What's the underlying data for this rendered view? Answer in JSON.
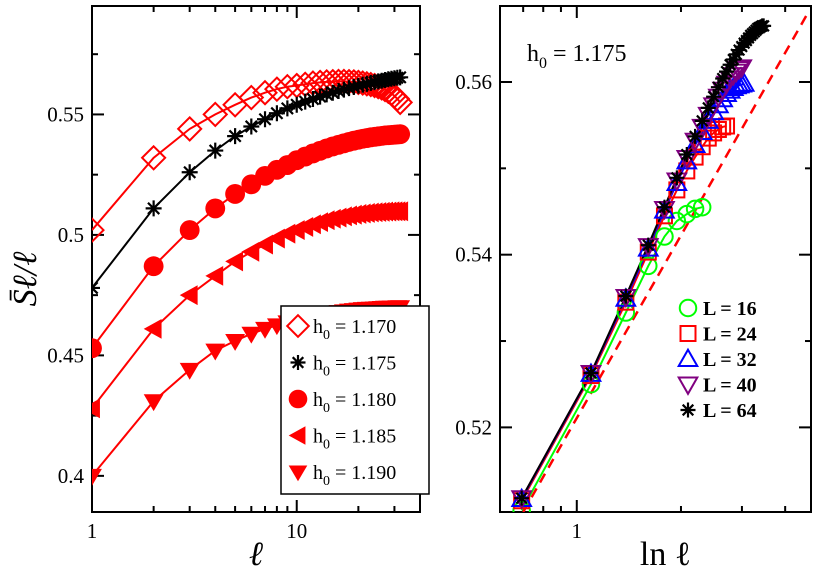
{
  "chart_data": [
    {
      "type": "line",
      "panel": "left",
      "xscale": "log",
      "xlim": [
        1,
        40
      ],
      "ylim": [
        0.385,
        0.595
      ],
      "xticks": [
        1,
        10
      ],
      "xtick_labels": [
        "1",
        "10"
      ],
      "yticks": [
        0.4,
        0.45,
        0.5,
        0.55
      ],
      "ytick_labels": [
        "0.4",
        "0.45",
        "0.5",
        "0.55"
      ],
      "xlabel": "ℓ",
      "ylabel": "S̄ℓ/ℓ",
      "legend_placement": "bottom-right",
      "series": [
        {
          "name": "h₀ = 1.170",
          "label_prefix": "h",
          "label_sub": "0",
          "label_value": " = 1.170",
          "color": "#ff0000",
          "marker": "diamond-open",
          "x": [
            1,
            2,
            3,
            4,
            5,
            6,
            7,
            8,
            9,
            10,
            11,
            12,
            13,
            14,
            15,
            16,
            17,
            18,
            19,
            20,
            21,
            22,
            23,
            24,
            25,
            26,
            27,
            28,
            29,
            30,
            31,
            32
          ],
          "y": [
            0.502,
            0.532,
            0.544,
            0.55,
            0.554,
            0.557,
            0.559,
            0.5605,
            0.5615,
            0.562,
            0.5625,
            0.563,
            0.5633,
            0.5635,
            0.5636,
            0.5637,
            0.5637,
            0.5636,
            0.5635,
            0.5633,
            0.563,
            0.5627,
            0.5624,
            0.562,
            0.5615,
            0.561,
            0.5603,
            0.5596,
            0.5587,
            0.5577,
            0.5565,
            0.555
          ]
        },
        {
          "name": "h₀ = 1.175",
          "label_prefix": "h",
          "label_sub": "0",
          "label_value": " = 1.175",
          "color": "#000000",
          "marker": "asterisk",
          "x": [
            1,
            2,
            3,
            4,
            5,
            6,
            7,
            8,
            9,
            10,
            11,
            12,
            13,
            14,
            15,
            16,
            17,
            18,
            19,
            20,
            21,
            22,
            23,
            24,
            25,
            26,
            27,
            28,
            29,
            30,
            31,
            32
          ],
          "y": [
            0.478,
            0.511,
            0.526,
            0.535,
            0.541,
            0.545,
            0.548,
            0.5505,
            0.5525,
            0.554,
            0.5553,
            0.5564,
            0.5574,
            0.5583,
            0.559,
            0.5597,
            0.5603,
            0.5609,
            0.5614,
            0.5619,
            0.5623,
            0.5627,
            0.5631,
            0.5634,
            0.5637,
            0.564,
            0.5643,
            0.5646,
            0.5648,
            0.565,
            0.5652,
            0.5654
          ]
        },
        {
          "name": "h₀ = 1.180",
          "label_prefix": "h",
          "label_sub": "0",
          "label_value": " = 1.180",
          "color": "#ff0000",
          "marker": "circle",
          "x": [
            1,
            2,
            3,
            4,
            5,
            6,
            7,
            8,
            9,
            10,
            11,
            12,
            13,
            14,
            15,
            16,
            17,
            18,
            19,
            20,
            21,
            22,
            23,
            24,
            25,
            26,
            27,
            28,
            29,
            30,
            31,
            32
          ],
          "y": [
            0.453,
            0.487,
            0.502,
            0.511,
            0.517,
            0.521,
            0.5245,
            0.527,
            0.529,
            0.531,
            0.5325,
            0.5338,
            0.5349,
            0.5359,
            0.5367,
            0.5374,
            0.538,
            0.5386,
            0.5391,
            0.5395,
            0.5399,
            0.5402,
            0.5405,
            0.5407,
            0.5409,
            0.5411,
            0.5413,
            0.5414,
            0.5415,
            0.5416,
            0.5417,
            0.5418
          ]
        },
        {
          "name": "h₀ = 1.185",
          "label_prefix": "h",
          "label_sub": "0",
          "label_value": " = 1.185",
          "color": "#ff0000",
          "marker": "triangle-left",
          "x": [
            1,
            2,
            3,
            4,
            5,
            6,
            7,
            8,
            9,
            10,
            11,
            12,
            13,
            14,
            15,
            16,
            17,
            18,
            19,
            20,
            21,
            22,
            23,
            24,
            25,
            26,
            27,
            28,
            29,
            30,
            31,
            32
          ],
          "y": [
            0.428,
            0.461,
            0.475,
            0.483,
            0.489,
            0.493,
            0.496,
            0.4985,
            0.5005,
            0.502,
            0.5033,
            0.5044,
            0.5053,
            0.5061,
            0.5067,
            0.5072,
            0.5077,
            0.5081,
            0.5084,
            0.5087,
            0.5089,
            0.5091,
            0.5093,
            0.5094,
            0.5095,
            0.5096,
            0.5097,
            0.5097,
            0.5098,
            0.5098,
            0.5098,
            0.5098
          ]
        },
        {
          "name": "h₀ = 1.190",
          "label_prefix": "h",
          "label_sub": "0",
          "label_value": " = 1.190",
          "color": "#ff0000",
          "marker": "triangle-down",
          "x": [
            1,
            2,
            3,
            4,
            5,
            6,
            7,
            8,
            9,
            10,
            11,
            12,
            13,
            14,
            15,
            16,
            17,
            18,
            19,
            20,
            21,
            22,
            23,
            24,
            25,
            26,
            27,
            28,
            29,
            30,
            31,
            32
          ],
          "y": [
            0.4,
            0.431,
            0.444,
            0.452,
            0.456,
            0.459,
            0.461,
            0.4625,
            0.4637,
            0.4647,
            0.4655,
            0.4662,
            0.4668,
            0.4673,
            0.4677,
            0.468,
            0.4683,
            0.4686,
            0.4688,
            0.469,
            0.4692,
            0.4693,
            0.4694,
            0.4695,
            0.4696,
            0.4697,
            0.4698,
            0.4698,
            0.4699,
            0.4699,
            0.47,
            0.47
          ]
        }
      ]
    },
    {
      "type": "line",
      "panel": "right",
      "xscale": "log",
      "xlim": [
        0.6,
        4.75
      ],
      "ylim": [
        0.5102,
        0.5688
      ],
      "xticks": [
        1
      ],
      "xtick_labels": [
        "1"
      ],
      "yticks": [
        0.52,
        0.54,
        0.56
      ],
      "ytick_labels": [
        "0.52",
        "0.54",
        "0.56"
      ],
      "xlabel": "ln ℓ",
      "ylabel": "",
      "annotation": {
        "prefix": "h",
        "sub": "0",
        "value": " = 1.175"
      },
      "legend_placement": "right",
      "fit_line": {
        "color": "#ff0000",
        "style": "dashed",
        "x": [
          0.7,
          4.7
        ],
        "y": [
          0.5102,
          0.5683
        ]
      },
      "series": [
        {
          "name": "L = 16",
          "color": "#00ff00",
          "marker": "circle-open",
          "x": [
            0.693,
            1.099,
            1.386,
            1.609,
            1.792,
            1.946,
            2.079,
            2.197,
            2.303
          ],
          "y": [
            0.5104,
            0.525,
            0.5333,
            0.5387,
            0.5421,
            0.5439,
            0.5447,
            0.5453,
            0.5455
          ]
        },
        {
          "name": "L = 24",
          "color": "#ff0000",
          "marker": "square-open",
          "x": [
            0.693,
            1.099,
            1.386,
            1.609,
            1.792,
            1.946,
            2.079,
            2.197,
            2.303,
            2.398,
            2.485,
            2.565,
            2.639,
            2.708
          ],
          "y": [
            0.5115,
            0.526,
            0.5345,
            0.5403,
            0.5445,
            0.5475,
            0.5497,
            0.5513,
            0.5525,
            0.5535,
            0.5541,
            0.5545,
            0.5548,
            0.5549
          ]
        },
        {
          "name": "L = 32",
          "color": "#0000ff",
          "marker": "triangle-up-open",
          "x": [
            0.693,
            1.099,
            1.386,
            1.609,
            1.792,
            1.946,
            2.079,
            2.197,
            2.303,
            2.398,
            2.485,
            2.565,
            2.639,
            2.708,
            2.773,
            2.833,
            2.89,
            2.944,
            2.996,
            3.045
          ],
          "y": [
            0.5117,
            0.5262,
            0.5349,
            0.5407,
            0.5451,
            0.5483,
            0.5508,
            0.5527,
            0.5542,
            0.5555,
            0.5565,
            0.5573,
            0.558,
            0.5586,
            0.559,
            0.5593,
            0.5595,
            0.5596,
            0.5597,
            0.5598
          ]
        },
        {
          "name": "L = 40",
          "color": "#800080",
          "marker": "triangle-down-open",
          "x": [
            0.693,
            1.099,
            1.386,
            1.609,
            1.792,
            1.946,
            2.079,
            2.197,
            2.303,
            2.398,
            2.485,
            2.565,
            2.639,
            2.708,
            2.773,
            2.833,
            2.89,
            2.944,
            2.996
          ],
          "y": [
            0.5118,
            0.5263,
            0.5351,
            0.541,
            0.5453,
            0.5486,
            0.5512,
            0.5532,
            0.5548,
            0.5562,
            0.5573,
            0.5583,
            0.5591,
            0.5598,
            0.5604,
            0.5608,
            0.5612,
            0.5615,
            0.5617
          ]
        },
        {
          "name": "L = 64",
          "color": "#000000",
          "marker": "asterisk",
          "x": [
            0.693,
            1.099,
            1.386,
            1.609,
            1.792,
            1.946,
            2.079,
            2.197,
            2.303,
            2.398,
            2.485,
            2.565,
            2.639,
            2.708,
            2.773,
            2.833,
            2.89,
            2.944,
            2.996,
            3.045,
            3.091,
            3.135,
            3.178,
            3.219,
            3.258,
            3.296,
            3.332,
            3.367,
            3.401,
            3.434,
            3.466
          ],
          "y": [
            0.5118,
            0.5263,
            0.5352,
            0.5411,
            0.5455,
            0.5489,
            0.5516,
            0.5537,
            0.5555,
            0.557,
            0.5583,
            0.5594,
            0.5604,
            0.5612,
            0.562,
            0.5626,
            0.5632,
            0.5637,
            0.5641,
            0.5645,
            0.5648,
            0.5651,
            0.5654,
            0.5656,
            0.5658,
            0.566,
            0.5662,
            0.5663,
            0.5664,
            0.5665,
            0.5665
          ]
        }
      ]
    }
  ]
}
